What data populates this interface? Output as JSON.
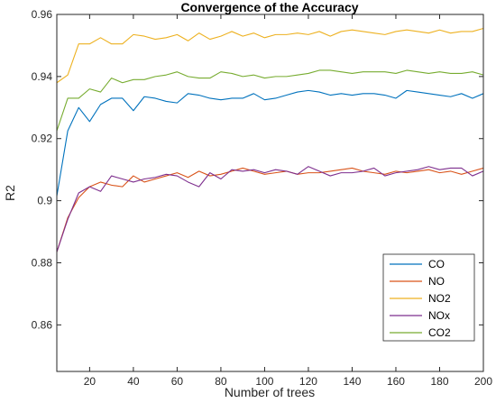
{
  "chart_data": {
    "type": "line",
    "title": "Convergence of the Accuracy",
    "xlabel": "Number of trees",
    "ylabel": "R2",
    "xlim": [
      5,
      200
    ],
    "ylim": [
      0.845,
      0.96
    ],
    "xticks": [
      20,
      40,
      60,
      80,
      100,
      120,
      140,
      160,
      180,
      200
    ],
    "yticks": [
      0.86,
      0.88,
      0.9,
      0.92,
      0.94,
      0.96
    ],
    "ytick_labels": [
      "0.86",
      "0.88",
      "0.9",
      "0.92",
      "0.94",
      "0.96"
    ],
    "grid": false,
    "legend_position": "bottom-right",
    "x": [
      5,
      10,
      15,
      20,
      25,
      30,
      35,
      40,
      45,
      50,
      55,
      60,
      65,
      70,
      75,
      80,
      85,
      90,
      95,
      100,
      105,
      110,
      115,
      120,
      125,
      130,
      135,
      140,
      145,
      150,
      155,
      160,
      165,
      170,
      175,
      180,
      185,
      190,
      195,
      200
    ],
    "series": [
      {
        "name": "CO",
        "color": "#0072BD",
        "values": [
          0.9015,
          0.9225,
          0.93,
          0.9255,
          0.931,
          0.933,
          0.933,
          0.929,
          0.9335,
          0.933,
          0.932,
          0.9315,
          0.9345,
          0.934,
          0.933,
          0.9325,
          0.933,
          0.933,
          0.9345,
          0.9325,
          0.933,
          0.934,
          0.935,
          0.9355,
          0.935,
          0.934,
          0.9345,
          0.934,
          0.9345,
          0.9345,
          0.934,
          0.933,
          0.9355,
          0.935,
          0.9345,
          0.934,
          0.9335,
          0.9345,
          0.933,
          0.9345
        ]
      },
      {
        "name": "NO",
        "color": "#D95319",
        "values": [
          0.8835,
          0.8945,
          0.901,
          0.9045,
          0.906,
          0.905,
          0.9045,
          0.908,
          0.906,
          0.907,
          0.908,
          0.909,
          0.9075,
          0.9095,
          0.908,
          0.9085,
          0.9095,
          0.9105,
          0.9095,
          0.9085,
          0.909,
          0.9095,
          0.9085,
          0.909,
          0.909,
          0.9095,
          0.91,
          0.9105,
          0.9095,
          0.909,
          0.9085,
          0.9095,
          0.909,
          0.9095,
          0.91,
          0.909,
          0.9095,
          0.9085,
          0.9095,
          0.9105
        ]
      },
      {
        "name": "NO2",
        "color": "#EDB120",
        "values": [
          0.938,
          0.9405,
          0.9505,
          0.9505,
          0.9525,
          0.9505,
          0.9505,
          0.9535,
          0.953,
          0.952,
          0.9525,
          0.9535,
          0.9515,
          0.954,
          0.952,
          0.953,
          0.9545,
          0.953,
          0.954,
          0.9525,
          0.9535,
          0.9535,
          0.954,
          0.9535,
          0.9545,
          0.953,
          0.9545,
          0.955,
          0.9545,
          0.954,
          0.9535,
          0.9545,
          0.955,
          0.9545,
          0.954,
          0.955,
          0.954,
          0.9545,
          0.9545,
          0.9555
        ]
      },
      {
        "name": "NOx",
        "color": "#7E2F8E",
        "values": [
          0.8835,
          0.894,
          0.9025,
          0.9045,
          0.903,
          0.908,
          0.907,
          0.906,
          0.907,
          0.9075,
          0.9085,
          0.908,
          0.906,
          0.9045,
          0.909,
          0.907,
          0.91,
          0.9095,
          0.91,
          0.909,
          0.91,
          0.9095,
          0.9085,
          0.911,
          0.9095,
          0.908,
          0.909,
          0.909,
          0.9095,
          0.9105,
          0.908,
          0.909,
          0.9095,
          0.91,
          0.911,
          0.91,
          0.9105,
          0.9105,
          0.908,
          0.9095
        ]
      },
      {
        "name": "CO2",
        "color": "#77AC30",
        "values": [
          0.9225,
          0.933,
          0.933,
          0.936,
          0.935,
          0.9395,
          0.938,
          0.939,
          0.939,
          0.94,
          0.9405,
          0.9415,
          0.94,
          0.9395,
          0.9395,
          0.9415,
          0.941,
          0.94,
          0.9405,
          0.9395,
          0.94,
          0.94,
          0.9405,
          0.941,
          0.942,
          0.942,
          0.9415,
          0.941,
          0.9415,
          0.9415,
          0.9415,
          0.941,
          0.942,
          0.9415,
          0.941,
          0.9415,
          0.941,
          0.941,
          0.9415,
          0.9405
        ]
      }
    ]
  }
}
